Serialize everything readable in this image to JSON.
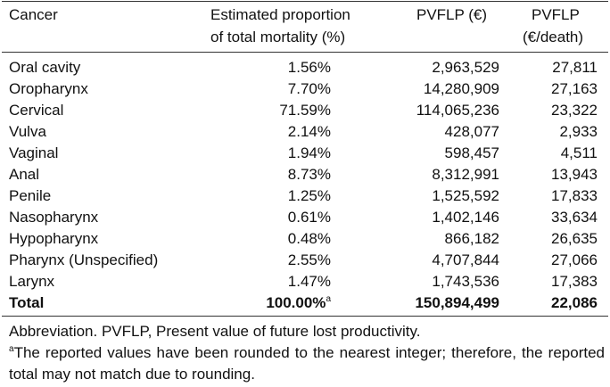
{
  "headers": {
    "cancer": "Cancer",
    "proportion_line1": "Estimated proportion",
    "proportion_line2": "of total mortality (%)",
    "pvflp": "PVFLP (€)",
    "pvflp_per_death_line1": "PVFLP",
    "pvflp_per_death_line2": "(€/death)"
  },
  "rows": [
    {
      "cancer": "Oral cavity",
      "proportion": "1.56%",
      "pvflp": "2,963,529",
      "per_death": "27,811"
    },
    {
      "cancer": "Oropharynx",
      "proportion": "7.70%",
      "pvflp": "14,280,909",
      "per_death": "27,163"
    },
    {
      "cancer": "Cervical",
      "proportion": "71.59%",
      "pvflp": "114,065,236",
      "per_death": "23,322"
    },
    {
      "cancer": "Vulva",
      "proportion": "2.14%",
      "pvflp": "428,077",
      "per_death": "2,933"
    },
    {
      "cancer": "Vaginal",
      "proportion": "1.94%",
      "pvflp": "598,457",
      "per_death": "4,511"
    },
    {
      "cancer": "Anal",
      "proportion": "8.73%",
      "pvflp": "8,312,991",
      "per_death": "13,943"
    },
    {
      "cancer": "Penile",
      "proportion": "1.25%",
      "pvflp": "1,525,592",
      "per_death": "17,833"
    },
    {
      "cancer": "Nasopharynx",
      "proportion": "0.61%",
      "pvflp": "1,402,146",
      "per_death": "33,634"
    },
    {
      "cancer": "Hypopharynx",
      "proportion": "0.48%",
      "pvflp": "866,182",
      "per_death": "26,635"
    },
    {
      "cancer": "Pharynx (Unspecified)",
      "proportion": "2.55%",
      "pvflp": "4,707,844",
      "per_death": "27,066"
    },
    {
      "cancer": "Larynx",
      "proportion": "1.47%",
      "pvflp": "1,743,536",
      "per_death": "17,383"
    }
  ],
  "total": {
    "cancer": "Total",
    "proportion": "100.00%",
    "proportion_marker": "a",
    "pvflp": "150,894,499",
    "per_death": "22,086"
  },
  "footnotes": {
    "abbreviation": "Abbreviation. PVFLP, Present value of future lost productivity.",
    "marker": "a",
    "note": "The reported values have been rounded to the nearest integer; therefore, the reported total may not match due to rounding."
  }
}
